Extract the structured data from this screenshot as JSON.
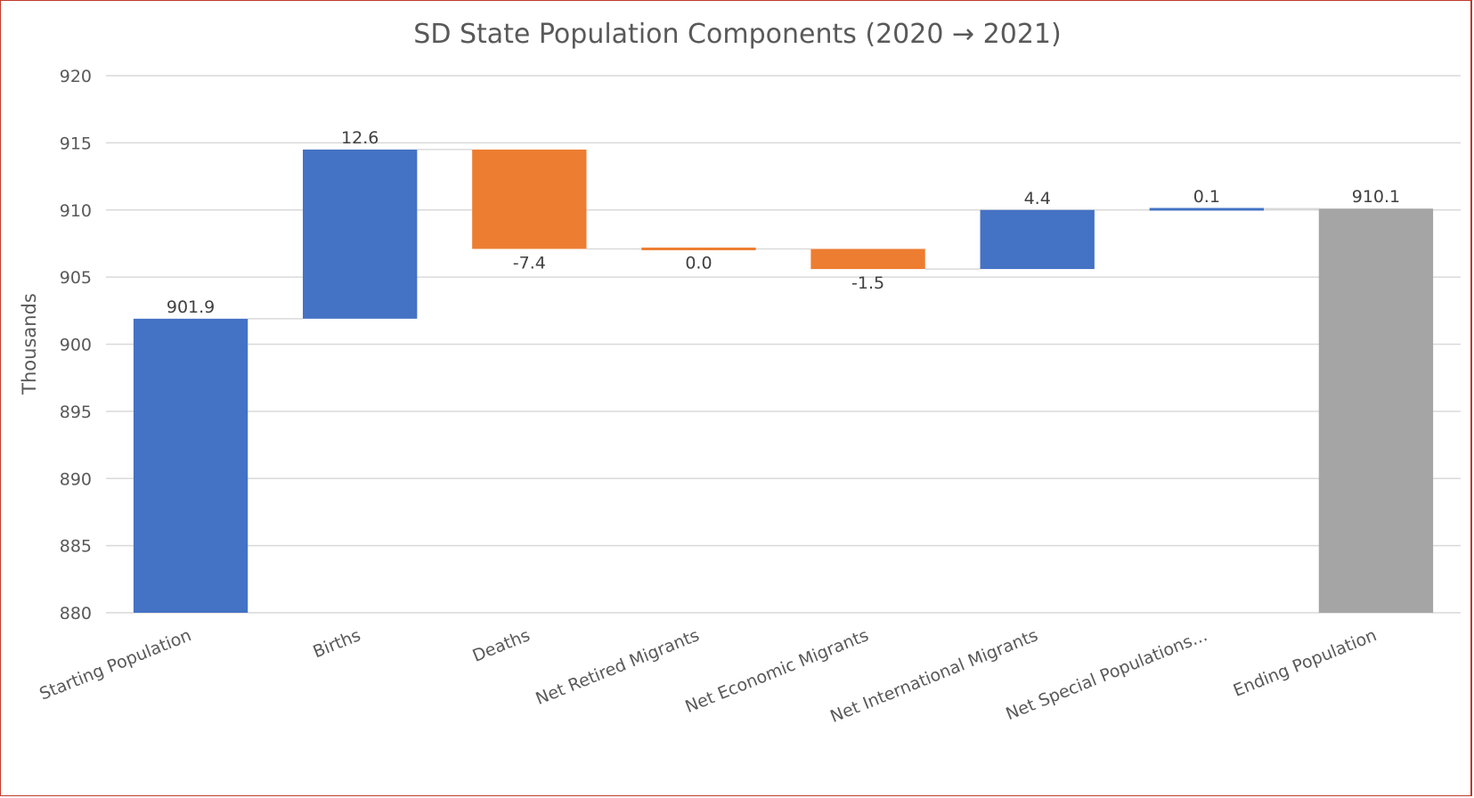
{
  "chart_data": {
    "type": "bar",
    "subtype": "waterfall",
    "title": "SD State Population Components (2020 → 2021)",
    "xlabel": "",
    "ylabel": "Thousands",
    "ylim": [
      880,
      920
    ],
    "yticks": [
      880,
      885,
      890,
      895,
      900,
      905,
      910,
      915,
      920
    ],
    "grid": true,
    "legend": "none",
    "categories": [
      "Starting Population",
      "Births",
      "Deaths",
      "Net Retired Migrants",
      "Net Economic Migrants",
      "Net International Migrants",
      "Net Special Populations...",
      "Ending Population"
    ],
    "values": [
      901.9,
      12.6,
      -7.4,
      0.0,
      -1.5,
      4.4,
      0.1,
      910.1
    ],
    "data_labels": [
      "901.9",
      "12.6",
      "-7.4",
      "0.0",
      "-1.5",
      "4.4",
      "0.1",
      "910.1"
    ],
    "kinds": [
      "total",
      "increase",
      "decrease",
      "decrease",
      "decrease",
      "increase",
      "increase",
      "total"
    ],
    "colors": {
      "increase": "#4472C4",
      "decrease": "#ED7D31",
      "total": "#A5A5A5",
      "start": "#4472C4"
    }
  }
}
